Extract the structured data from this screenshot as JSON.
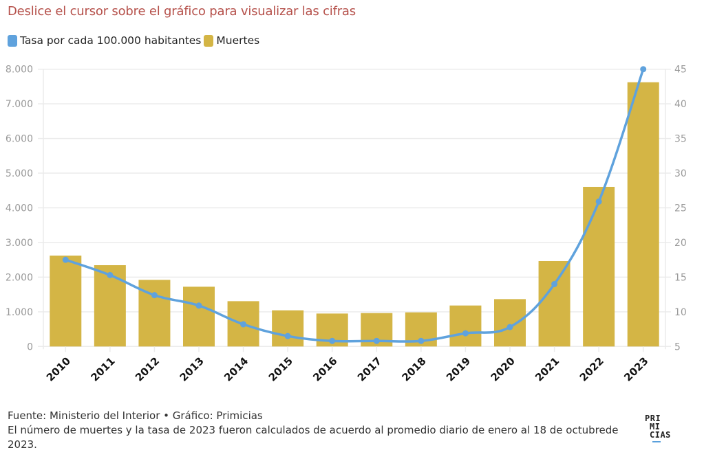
{
  "header": {
    "title": "Deslice el cursor sobre el gráfico para visualizar las cifras"
  },
  "legend": [
    {
      "label": "Tasa por cada 100.000 habitantes",
      "color": "#5fa2dd",
      "icon": "rounded-square"
    },
    {
      "label": "Muertes",
      "color": "#d4b545",
      "icon": "rounded-square"
    }
  ],
  "footer": {
    "source": "Fuente: Ministerio del Interior • Gráfico: Primicias",
    "note": "El número de muertes y la tasa de 2023 fueron calculados de acuerdo al promedio diario de enero al 18 de octubrede 2023."
  },
  "logo": {
    "line1": "PRI",
    "line2": "MI",
    "line3": "CIAS",
    "accent_color": "#5aa0dc"
  },
  "chart_data": {
    "type": "bar",
    "title": "Deslice el cursor sobre el gráfico para visualizar las cifras",
    "xlabel": "",
    "categories": [
      "2010",
      "2011",
      "2012",
      "2013",
      "2014",
      "2015",
      "2016",
      "2017",
      "2018",
      "2019",
      "2020",
      "2021",
      "2022",
      "2023"
    ],
    "series": [
      {
        "name": "Muertes",
        "type": "bar",
        "axis": "left",
        "color": "#d4b545",
        "values": [
          2622,
          2345,
          1922,
          1724,
          1307,
          1043,
          950,
          964,
          984,
          1182,
          1366,
          2464,
          4605,
          7623
        ]
      },
      {
        "name": "Tasa por cada 100.000 habitantes",
        "type": "line",
        "axis": "right",
        "color": "#5fa2dd",
        "values": [
          17.5,
          15.3,
          12.4,
          10.9,
          8.2,
          6.5,
          5.8,
          5.8,
          5.8,
          6.9,
          7.8,
          14.0,
          25.9,
          45.0
        ]
      }
    ],
    "y_left": {
      "ylim": [
        0,
        8000
      ],
      "ticks": [
        0,
        1000,
        2000,
        3000,
        4000,
        5000,
        6000,
        7000,
        8000
      ],
      "tick_labels": [
        "0",
        "1.000",
        "2.000",
        "3.000",
        "4.000",
        "5.000",
        "6.000",
        "7.000",
        "8.000"
      ]
    },
    "y_right": {
      "ylim": [
        5,
        45
      ],
      "ticks": [
        5,
        10,
        15,
        20,
        25,
        30,
        35,
        40,
        45
      ],
      "tick_labels": [
        "5",
        "10",
        "15",
        "20",
        "25",
        "30",
        "35",
        "40",
        "45"
      ]
    },
    "grid": true,
    "legend_position": "top-left"
  }
}
